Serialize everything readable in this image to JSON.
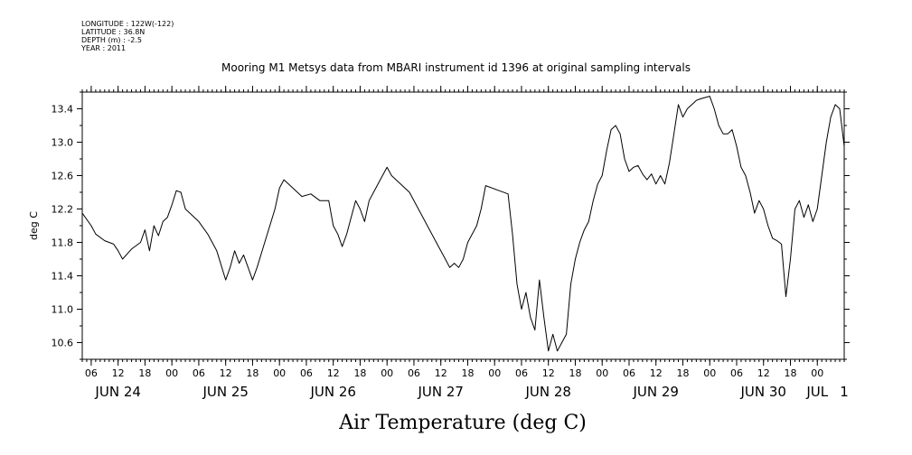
{
  "meta": {
    "longitude": "LONGITUDE : 122W(-122)",
    "latitude": "LATITUDE : 36.8N",
    "depth": "DEPTH (m) : -2.5",
    "year": "YEAR : 2011"
  },
  "chart_data": {
    "type": "line",
    "title": "Mooring M1 Metsys data from MBARI instrument id 1396 at original sampling intervals",
    "xlabel": "Air Temperature (deg C)",
    "ylabel": "deg C",
    "ylim": [
      10.4,
      13.6
    ],
    "yticks": [
      10.6,
      11.0,
      11.4,
      11.8,
      12.2,
      12.6,
      13.0,
      13.4
    ],
    "ytick_labels": [
      "10.6",
      "11.0",
      "11.4",
      "11.8",
      "12.2",
      "12.6",
      "13.0",
      "13.4"
    ],
    "xlim": [
      "2011-06-24 04:00",
      "2011-07-01 06:00"
    ],
    "x_hour_ticks": [
      {
        "x": "2011-06-24 06:00",
        "label": "06"
      },
      {
        "x": "2011-06-24 12:00",
        "label": "12"
      },
      {
        "x": "2011-06-24 18:00",
        "label": "18"
      },
      {
        "x": "2011-06-25 00:00",
        "label": "00"
      },
      {
        "x": "2011-06-25 06:00",
        "label": "06"
      },
      {
        "x": "2011-06-25 12:00",
        "label": "12"
      },
      {
        "x": "2011-06-25 18:00",
        "label": "18"
      },
      {
        "x": "2011-06-26 00:00",
        "label": "00"
      },
      {
        "x": "2011-06-26 06:00",
        "label": "06"
      },
      {
        "x": "2011-06-26 12:00",
        "label": "12"
      },
      {
        "x": "2011-06-26 18:00",
        "label": "18"
      },
      {
        "x": "2011-06-27 00:00",
        "label": "00"
      },
      {
        "x": "2011-06-27 06:00",
        "label": "06"
      },
      {
        "x": "2011-06-27 12:00",
        "label": "12"
      },
      {
        "x": "2011-06-27 18:00",
        "label": "18"
      },
      {
        "x": "2011-06-28 00:00",
        "label": "00"
      },
      {
        "x": "2011-06-28 06:00",
        "label": "06"
      },
      {
        "x": "2011-06-28 12:00",
        "label": "12"
      },
      {
        "x": "2011-06-28 18:00",
        "label": "18"
      },
      {
        "x": "2011-06-29 00:00",
        "label": "00"
      },
      {
        "x": "2011-06-29 06:00",
        "label": "06"
      },
      {
        "x": "2011-06-29 12:00",
        "label": "12"
      },
      {
        "x": "2011-06-29 18:00",
        "label": "18"
      },
      {
        "x": "2011-06-30 00:00",
        "label": "00"
      },
      {
        "x": "2011-06-30 06:00",
        "label": "06"
      },
      {
        "x": "2011-06-30 12:00",
        "label": "12"
      },
      {
        "x": "2011-06-30 18:00",
        "label": "18"
      },
      {
        "x": "2011-07-01 00:00",
        "label": "00"
      }
    ],
    "x_day_labels": [
      {
        "x": "2011-06-24 12:00",
        "label": "JUN 24"
      },
      {
        "x": "2011-06-25 12:00",
        "label": "JUN 25"
      },
      {
        "x": "2011-06-26 12:00",
        "label": "JUN 26"
      },
      {
        "x": "2011-06-27 12:00",
        "label": "JUN 27"
      },
      {
        "x": "2011-06-28 12:00",
        "label": "JUN 28"
      },
      {
        "x": "2011-06-29 12:00",
        "label": "JUN 29"
      },
      {
        "x": "2011-06-30 12:00",
        "label": "JUN 30"
      },
      {
        "x": "2011-07-01 00:00",
        "label": "JUL"
      },
      {
        "x": "2011-07-01 06:00",
        "label": "1"
      }
    ],
    "grid": false,
    "series": [
      {
        "color": "#000000",
        "points": [
          [
            "2011-06-24 04:00",
            12.15
          ],
          [
            "2011-06-24 06:00",
            12.0
          ],
          [
            "2011-06-24 07:00",
            11.9
          ],
          [
            "2011-06-24 09:00",
            11.82
          ],
          [
            "2011-06-24 11:00",
            11.78
          ],
          [
            "2011-06-24 12:00",
            11.7
          ],
          [
            "2011-06-24 13:00",
            11.6
          ],
          [
            "2011-06-24 15:00",
            11.72
          ],
          [
            "2011-06-24 17:00",
            11.8
          ],
          [
            "2011-06-24 18:00",
            11.95
          ],
          [
            "2011-06-24 19:00",
            11.7
          ],
          [
            "2011-06-24 20:00",
            12.0
          ],
          [
            "2011-06-24 21:00",
            11.88
          ],
          [
            "2011-06-24 22:00",
            12.05
          ],
          [
            "2011-06-24 23:00",
            12.1
          ],
          [
            "2011-06-25 00:00",
            12.25
          ],
          [
            "2011-06-25 01:00",
            12.42
          ],
          [
            "2011-06-25 02:00",
            12.4
          ],
          [
            "2011-06-25 03:00",
            12.2
          ],
          [
            "2011-06-25 06:00",
            12.05
          ],
          [
            "2011-06-25 08:00",
            11.9
          ],
          [
            "2011-06-25 10:00",
            11.7
          ],
          [
            "2011-06-25 12:00",
            11.35
          ],
          [
            "2011-06-25 13:00",
            11.5
          ],
          [
            "2011-06-25 14:00",
            11.7
          ],
          [
            "2011-06-25 15:00",
            11.55
          ],
          [
            "2011-06-25 16:00",
            11.65
          ],
          [
            "2011-06-25 17:00",
            11.5
          ],
          [
            "2011-06-25 18:00",
            11.35
          ],
          [
            "2011-06-25 19:00",
            11.5
          ],
          [
            "2011-06-25 21:00",
            11.85
          ],
          [
            "2011-06-25 23:00",
            12.2
          ],
          [
            "2011-06-26 00:00",
            12.45
          ],
          [
            "2011-06-26 01:00",
            12.55
          ],
          [
            "2011-06-26 03:00",
            12.45
          ],
          [
            "2011-06-26 05:00",
            12.35
          ],
          [
            "2011-06-26 07:00",
            12.38
          ],
          [
            "2011-06-26 09:00",
            12.3
          ],
          [
            "2011-06-26 11:00",
            12.3
          ],
          [
            "2011-06-26 12:00",
            12.0
          ],
          [
            "2011-06-26 13:00",
            11.9
          ],
          [
            "2011-06-26 14:00",
            11.75
          ],
          [
            "2011-06-26 15:00",
            11.9
          ],
          [
            "2011-06-26 16:00",
            12.1
          ],
          [
            "2011-06-26 17:00",
            12.3
          ],
          [
            "2011-06-26 18:00",
            12.2
          ],
          [
            "2011-06-26 19:00",
            12.05
          ],
          [
            "2011-06-26 20:00",
            12.3
          ],
          [
            "2011-06-26 21:00",
            12.4
          ],
          [
            "2011-06-26 23:00",
            12.6
          ],
          [
            "2011-06-27 00:00",
            12.7
          ],
          [
            "2011-06-27 01:00",
            12.6
          ],
          [
            "2011-06-27 03:00",
            12.5
          ],
          [
            "2011-06-27 05:00",
            12.4
          ],
          [
            "2011-06-27 07:00",
            12.2
          ],
          [
            "2011-06-27 09:00",
            12.0
          ],
          [
            "2011-06-27 11:00",
            11.8
          ],
          [
            "2011-06-27 13:00",
            11.6
          ],
          [
            "2011-06-27 14:00",
            11.5
          ],
          [
            "2011-06-27 15:00",
            11.55
          ],
          [
            "2011-06-27 16:00",
            11.5
          ],
          [
            "2011-06-27 17:00",
            11.6
          ],
          [
            "2011-06-27 18:00",
            11.8
          ],
          [
            "2011-06-27 20:00",
            12.0
          ],
          [
            "2011-06-27 21:00",
            12.2
          ],
          [
            "2011-06-27 22:00",
            12.48
          ],
          [
            "2011-06-28 01:00",
            12.42
          ],
          [
            "2011-06-28 03:00",
            12.38
          ],
          [
            "2011-06-28 04:00",
            11.9
          ],
          [
            "2011-06-28 05:00",
            11.3
          ],
          [
            "2011-06-28 06:00",
            11.0
          ],
          [
            "2011-06-28 07:00",
            11.2
          ],
          [
            "2011-06-28 08:00",
            10.9
          ],
          [
            "2011-06-28 09:00",
            10.75
          ],
          [
            "2011-06-28 10:00",
            11.35
          ],
          [
            "2011-06-28 11:00",
            10.9
          ],
          [
            "2011-06-28 12:00",
            10.5
          ],
          [
            "2011-06-28 13:00",
            10.7
          ],
          [
            "2011-06-28 14:00",
            10.5
          ],
          [
            "2011-06-28 15:00",
            10.6
          ],
          [
            "2011-06-28 16:00",
            10.7
          ],
          [
            "2011-06-28 17:00",
            11.3
          ],
          [
            "2011-06-28 18:00",
            11.6
          ],
          [
            "2011-06-28 19:00",
            11.8
          ],
          [
            "2011-06-28 20:00",
            11.95
          ],
          [
            "2011-06-28 21:00",
            12.05
          ],
          [
            "2011-06-28 22:00",
            12.3
          ],
          [
            "2011-06-28 23:00",
            12.5
          ],
          [
            "2011-06-29 00:00",
            12.6
          ],
          [
            "2011-06-29 01:00",
            12.9
          ],
          [
            "2011-06-29 02:00",
            13.15
          ],
          [
            "2011-06-29 03:00",
            13.2
          ],
          [
            "2011-06-29 04:00",
            13.1
          ],
          [
            "2011-06-29 05:00",
            12.8
          ],
          [
            "2011-06-29 06:00",
            12.65
          ],
          [
            "2011-06-29 07:00",
            12.7
          ],
          [
            "2011-06-29 08:00",
            12.72
          ],
          [
            "2011-06-29 09:00",
            12.62
          ],
          [
            "2011-06-29 10:00",
            12.55
          ],
          [
            "2011-06-29 11:00",
            12.62
          ],
          [
            "2011-06-29 12:00",
            12.5
          ],
          [
            "2011-06-29 13:00",
            12.6
          ],
          [
            "2011-06-29 14:00",
            12.5
          ],
          [
            "2011-06-29 15:00",
            12.75
          ],
          [
            "2011-06-29 16:00",
            13.1
          ],
          [
            "2011-06-29 17:00",
            13.45
          ],
          [
            "2011-06-29 18:00",
            13.3
          ],
          [
            "2011-06-29 19:00",
            13.4
          ],
          [
            "2011-06-29 20:00",
            13.45
          ],
          [
            "2011-06-29 21:00",
            13.5
          ],
          [
            "2011-06-29 22:00",
            13.52
          ],
          [
            "2011-06-30 00:00",
            13.55
          ],
          [
            "2011-06-30 01:00",
            13.4
          ],
          [
            "2011-06-30 02:00",
            13.2
          ],
          [
            "2011-06-30 03:00",
            13.1
          ],
          [
            "2011-06-30 04:00",
            13.1
          ],
          [
            "2011-06-30 05:00",
            13.15
          ],
          [
            "2011-06-30 06:00",
            12.95
          ],
          [
            "2011-06-30 07:00",
            12.7
          ],
          [
            "2011-06-30 08:00",
            12.6
          ],
          [
            "2011-06-30 09:00",
            12.4
          ],
          [
            "2011-06-30 10:00",
            12.15
          ],
          [
            "2011-06-30 11:00",
            12.3
          ],
          [
            "2011-06-30 12:00",
            12.2
          ],
          [
            "2011-06-30 13:00",
            12.0
          ],
          [
            "2011-06-30 14:00",
            11.85
          ],
          [
            "2011-06-30 15:00",
            11.82
          ],
          [
            "2011-06-30 16:00",
            11.78
          ],
          [
            "2011-06-30 17:00",
            11.15
          ],
          [
            "2011-06-30 18:00",
            11.6
          ],
          [
            "2011-06-30 19:00",
            12.2
          ],
          [
            "2011-06-30 20:00",
            12.3
          ],
          [
            "2011-06-30 21:00",
            12.1
          ],
          [
            "2011-06-30 22:00",
            12.25
          ],
          [
            "2011-06-30 23:00",
            12.05
          ],
          [
            "2011-07-01 00:00",
            12.2
          ],
          [
            "2011-07-01 01:00",
            12.6
          ],
          [
            "2011-07-01 02:00",
            13.0
          ],
          [
            "2011-07-01 03:00",
            13.3
          ],
          [
            "2011-07-01 04:00",
            13.45
          ],
          [
            "2011-07-01 05:00",
            13.4
          ],
          [
            "2011-07-01 06:00",
            12.95
          ]
        ]
      }
    ]
  }
}
